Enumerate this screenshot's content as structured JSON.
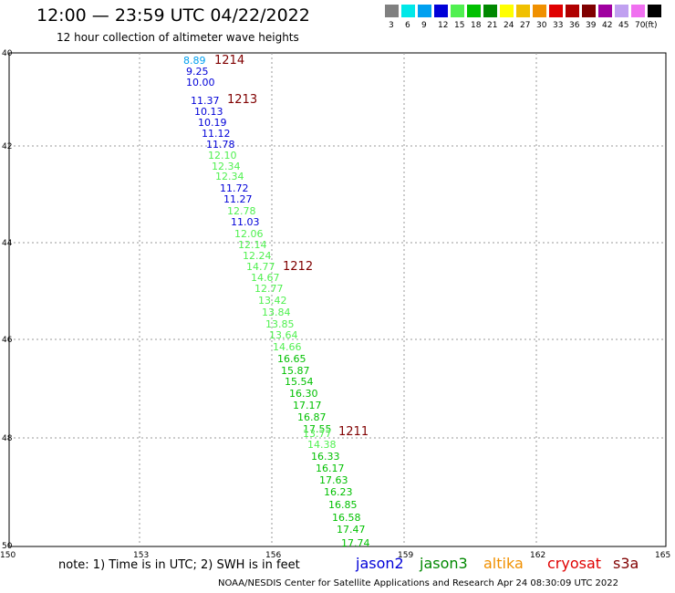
{
  "header": {
    "title": "12:00 — 23:59 UTC 04/22/2022",
    "subtitle": "12 hour collection of altimeter wave heights"
  },
  "legend": {
    "unit": "(ft)",
    "bins": [
      {
        "label": "3",
        "color": "#808080"
      },
      {
        "label": "6",
        "color": "#00e8e8"
      },
      {
        "label": "9",
        "color": "#00a0f0"
      },
      {
        "label": "12",
        "color": "#0000d8"
      },
      {
        "label": "15",
        "color": "#50f050"
      },
      {
        "label": "18",
        "color": "#00c000"
      },
      {
        "label": "21",
        "color": "#008800"
      },
      {
        "label": "24",
        "color": "#ffff00"
      },
      {
        "label": "27",
        "color": "#f0c000"
      },
      {
        "label": "30",
        "color": "#f09000"
      },
      {
        "label": "33",
        "color": "#e00000"
      },
      {
        "label": "36",
        "color": "#b00000"
      },
      {
        "label": "39",
        "color": "#800000"
      },
      {
        "label": "42",
        "color": "#a000a0"
      },
      {
        "label": "45",
        "color": "#c0a0f0"
      },
      {
        "label": "70",
        "color": "#f070f0"
      },
      {
        "label": "",
        "color": "#000000"
      }
    ]
  },
  "map": {
    "lat_ticks": [
      "40",
      "42",
      "44",
      "46",
      "48",
      "50"
    ],
    "lon_ticks": [
      "150",
      "153",
      "156",
      "159",
      "162",
      "165"
    ]
  },
  "passes": [
    {
      "label": "1214"
    },
    {
      "label": "1213"
    },
    {
      "label": "1212"
    },
    {
      "label": "1211"
    }
  ],
  "measurements": [
    {
      "value": "8.89",
      "color": "#00a0f0"
    },
    {
      "value": "9.25",
      "color": "#0000d8"
    },
    {
      "value": "10.00",
      "color": "#0000d8"
    },
    {
      "value": "11.37",
      "color": "#0000d8"
    },
    {
      "value": "10.13",
      "color": "#0000d8"
    },
    {
      "value": "10.19",
      "color": "#0000d8"
    },
    {
      "value": "11.12",
      "color": "#0000d8"
    },
    {
      "value": "11.78",
      "color": "#0000d8"
    },
    {
      "value": "12.10",
      "color": "#50f050"
    },
    {
      "value": "12.34",
      "color": "#50f050"
    },
    {
      "value": "12.34",
      "color": "#50f050"
    },
    {
      "value": "11.72",
      "color": "#0000d8"
    },
    {
      "value": "11.27",
      "color": "#0000d8"
    },
    {
      "value": "12.78",
      "color": "#50f050"
    },
    {
      "value": "11.03",
      "color": "#0000d8"
    },
    {
      "value": "12.06",
      "color": "#50f050"
    },
    {
      "value": "12.14",
      "color": "#50f050"
    },
    {
      "value": "12.24",
      "color": "#50f050"
    },
    {
      "value": "14.77",
      "color": "#50f050"
    },
    {
      "value": "14.67",
      "color": "#50f050"
    },
    {
      "value": "12.77",
      "color": "#50f050"
    },
    {
      "value": "13.42",
      "color": "#50f050"
    },
    {
      "value": "13.84",
      "color": "#50f050"
    },
    {
      "value": "13.85",
      "color": "#50f050"
    },
    {
      "value": "13.64",
      "color": "#50f050"
    },
    {
      "value": "14.66",
      "color": "#50f050"
    },
    {
      "value": "16.65",
      "color": "#00c000"
    },
    {
      "value": "15.87",
      "color": "#00c000"
    },
    {
      "value": "15.54",
      "color": "#00c000"
    },
    {
      "value": "16.30",
      "color": "#00c000"
    },
    {
      "value": "17.17",
      "color": "#00c000"
    },
    {
      "value": "16.87",
      "color": "#00c000"
    },
    {
      "value": "17.55",
      "color": "#00c000"
    },
    {
      "value": "13.77",
      "color": "#50f050"
    },
    {
      "value": "14.38",
      "color": "#50f050"
    },
    {
      "value": "16.33",
      "color": "#00c000"
    },
    {
      "value": "16.17",
      "color": "#00c000"
    },
    {
      "value": "17.63",
      "color": "#00c000"
    },
    {
      "value": "16.23",
      "color": "#00c000"
    },
    {
      "value": "16.85",
      "color": "#00c000"
    },
    {
      "value": "16.58",
      "color": "#00c000"
    },
    {
      "value": "17.47",
      "color": "#00c000"
    },
    {
      "value": "17.74",
      "color": "#00c000"
    }
  ],
  "note": "note: 1) Time is in UTC; 2) SWH is in feet",
  "satellites": [
    {
      "name": "jason2",
      "color": "#0000d8"
    },
    {
      "name": "jason3",
      "color": "#008800"
    },
    {
      "name": "altika",
      "color": "#f09000"
    },
    {
      "name": "cryosat",
      "color": "#e00000"
    },
    {
      "name": "s3a",
      "color": "#800000"
    }
  ],
  "footer": "NOAA/NESDIS Center for Satellite Applications and Research    Apr 24 08:30:09 UTC 2022"
}
